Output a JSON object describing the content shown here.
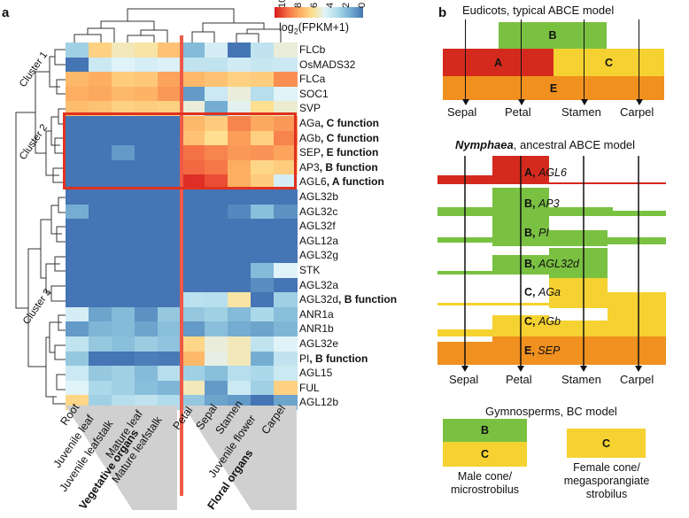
{
  "panel_a": {
    "letter": "a",
    "legend": {
      "title": "log2(FPKM+1)",
      "title_main": "log",
      "title_sub": "2",
      "title_rest": "(FPKM+1)",
      "ticks": [
        "10",
        "8",
        "6",
        "4",
        "2",
        "0"
      ],
      "colors": [
        "#d7191c",
        "#f46d43",
        "#fdae61",
        "#fee090",
        "#e0f3f8",
        "#abd9e9",
        "#74add1",
        "#4575b4"
      ]
    },
    "cluster_labels": [
      "Cluster 1",
      "Cluster 2",
      "Cluster 3"
    ],
    "column_labels": [
      "Root",
      "Juvenile leaf",
      "Juvenile leafstalk",
      "Mature leaf",
      "Mature leafstalk",
      "Petal",
      "Sepal",
      "Stamen",
      "Juvenile flower",
      "Carpel"
    ],
    "group_labels": {
      "vegetative": "Vegetative organs",
      "floral": "Floral organs"
    },
    "genes": [
      {
        "name": "FLCb",
        "function": "",
        "values": [
          4.0,
          6.5,
          5.8,
          6.0,
          6.8,
          3.5,
          5.0,
          2.0,
          4.6,
          5.5
        ]
      },
      {
        "name": "OsMADS32",
        "function": "",
        "values": [
          1.3,
          4.8,
          5.2,
          5.0,
          5.1,
          4.6,
          4.6,
          4.9,
          4.7,
          4.8
        ]
      },
      {
        "name": "FLCa",
        "function": "",
        "values": [
          7.0,
          7.2,
          6.6,
          6.7,
          7.4,
          7.0,
          6.8,
          6.5,
          6.6,
          7.8
        ]
      },
      {
        "name": "SOC1",
        "function": "",
        "values": [
          7.2,
          7.3,
          7.0,
          7.1,
          7.6,
          2.8,
          4.8,
          5.5,
          4.4,
          5.2
        ]
      },
      {
        "name": "SVP",
        "function": "",
        "values": [
          6.9,
          6.8,
          6.5,
          6.6,
          6.5,
          5.5,
          3.2,
          5.3,
          6.2,
          5.6
        ]
      },
      {
        "name": "AGa",
        "function": "C function",
        "values": [
          1.5,
          1.4,
          1.5,
          1.6,
          1.5,
          7.0,
          6.6,
          8.0,
          7.3,
          7.6
        ]
      },
      {
        "name": "AGb",
        "function": "C function",
        "values": [
          1.3,
          1.4,
          1.6,
          1.4,
          1.5,
          6.8,
          6.2,
          7.5,
          6.5,
          8.0
        ]
      },
      {
        "name": "SEP",
        "function": "E function",
        "values": [
          1.4,
          1.6,
          2.8,
          1.5,
          1.6,
          8.3,
          8.0,
          7.6,
          7.7,
          7.4
        ]
      },
      {
        "name": "AP3",
        "function": "B function",
        "values": [
          1.3,
          1.8,
          1.7,
          1.5,
          1.6,
          8.5,
          8.2,
          7.2,
          6.4,
          6.6
        ]
      },
      {
        "name": "AGL6",
        "function": "A function",
        "values": [
          1.6,
          1.5,
          1.5,
          1.6,
          1.5,
          9.6,
          9.0,
          7.2,
          6.6,
          5.0
        ]
      },
      {
        "name": "AGL32b",
        "function": "",
        "values": [
          1.5,
          1.6,
          1.5,
          1.6,
          1.5,
          1.5,
          1.6,
          1.8,
          1.9,
          1.7
        ]
      },
      {
        "name": "AGL32c",
        "function": "",
        "values": [
          3.2,
          1.6,
          1.5,
          1.5,
          1.7,
          1.5,
          1.8,
          2.4,
          3.6,
          2.6
        ]
      },
      {
        "name": "AGL32f",
        "function": "",
        "values": [
          1.5,
          1.6,
          1.4,
          1.5,
          1.5,
          1.5,
          1.6,
          1.7,
          2.0,
          1.8
        ]
      },
      {
        "name": "AGL12a",
        "function": "",
        "values": [
          1.5,
          1.5,
          1.5,
          1.5,
          1.5,
          1.5,
          1.5,
          1.6,
          1.7,
          1.6
        ]
      },
      {
        "name": "AGL32g",
        "function": "",
        "values": [
          1.5,
          1.5,
          1.5,
          1.5,
          1.5,
          1.5,
          1.5,
          1.6,
          1.8,
          1.6
        ]
      },
      {
        "name": "STK",
        "function": "",
        "values": [
          1.5,
          1.5,
          1.5,
          1.5,
          1.5,
          1.5,
          1.6,
          2.0,
          3.5,
          5.2
        ]
      },
      {
        "name": "AGL32a",
        "function": "",
        "values": [
          1.5,
          1.5,
          1.5,
          1.5,
          1.5,
          1.5,
          1.6,
          1.8,
          2.5,
          1.7
        ]
      },
      {
        "name": "AGL32d",
        "function": "B function",
        "values": [
          1.5,
          1.5,
          1.5,
          1.5,
          1.5,
          4.5,
          4.4,
          6.0,
          1.4,
          4.0
        ]
      },
      {
        "name": "ANR1a",
        "function": "",
        "values": [
          5.0,
          3.0,
          3.5,
          2.6,
          3.8,
          3.8,
          4.0,
          3.5,
          4.2,
          3.6
        ]
      },
      {
        "name": "ANR1b",
        "function": "",
        "values": [
          2.8,
          3.4,
          3.5,
          3.0,
          3.6,
          2.8,
          3.6,
          3.2,
          3.0,
          3.4
        ]
      },
      {
        "name": "AGL32e",
        "function": "",
        "values": [
          4.6,
          3.8,
          3.6,
          3.9,
          3.7,
          6.4,
          5.5,
          5.8,
          4.6,
          5.2
        ]
      },
      {
        "name": "PI",
        "function": "B function",
        "values": [
          3.8,
          1.9,
          2.0,
          2.2,
          2.1,
          7.0,
          5.4,
          5.8,
          3.2,
          4.6
        ]
      },
      {
        "name": "AGL15",
        "function": "",
        "values": [
          4.8,
          3.8,
          4.0,
          3.5,
          4.4,
          4.0,
          3.6,
          4.4,
          4.2,
          4.8
        ]
      },
      {
        "name": "FUL",
        "function": "",
        "values": [
          5.2,
          4.2,
          4.0,
          3.6,
          3.4,
          5.8,
          2.8,
          4.8,
          4.0,
          6.5
        ]
      },
      {
        "name": "AGL12b",
        "function": "",
        "values": [
          6.4,
          4.0,
          4.4,
          4.6,
          4.3,
          3.8,
          3.0,
          2.8,
          2.0,
          3.0
        ]
      }
    ]
  },
  "panel_b": {
    "letter": "b",
    "eudicot": {
      "title": "Eudicots, typical ABCE model",
      "blocks": [
        {
          "label": "B",
          "color": "#7ac142"
        },
        {
          "label": "A",
          "color": "#d42a1e"
        },
        {
          "label": "C",
          "color": "#f5d231"
        },
        {
          "label": "E",
          "color": "#f0901e"
        }
      ],
      "organs": [
        "Sepal",
        "Petal",
        "Stamen",
        "Carpel"
      ]
    },
    "nymphaea": {
      "title_italic": "Nymphaea",
      "title_rest": ", ancestral ABCE model",
      "rows": [
        {
          "func": "A",
          "gene": "AGL6",
          "color": "#d42a1e"
        },
        {
          "func": "B",
          "gene": "AP3",
          "color": "#7ac142"
        },
        {
          "func": "B",
          "gene": "PI",
          "color": "#7ac142"
        },
        {
          "func": "B",
          "gene": "AGL32d",
          "color": "#7ac142"
        },
        {
          "func": "C",
          "gene": "AGa",
          "color": "#f5d231"
        },
        {
          "func": "C",
          "gene": "AGb",
          "color": "#f5d231"
        },
        {
          "func": "E",
          "gene": "SEP",
          "color": "#f0901e"
        }
      ],
      "organs": [
        "Sepal",
        "Petal",
        "Stamen",
        "Carpel"
      ]
    },
    "gymnosperm": {
      "title": "Gymnosperms, BC model",
      "male": {
        "b": "B",
        "c": "C",
        "label_line1": "Male cone/",
        "label_line2": "microstrobilus"
      },
      "female": {
        "c": "C",
        "label_line1": "Female cone/",
        "label_line2": "megasporangiate",
        "label_line3": "strobilus"
      }
    }
  }
}
